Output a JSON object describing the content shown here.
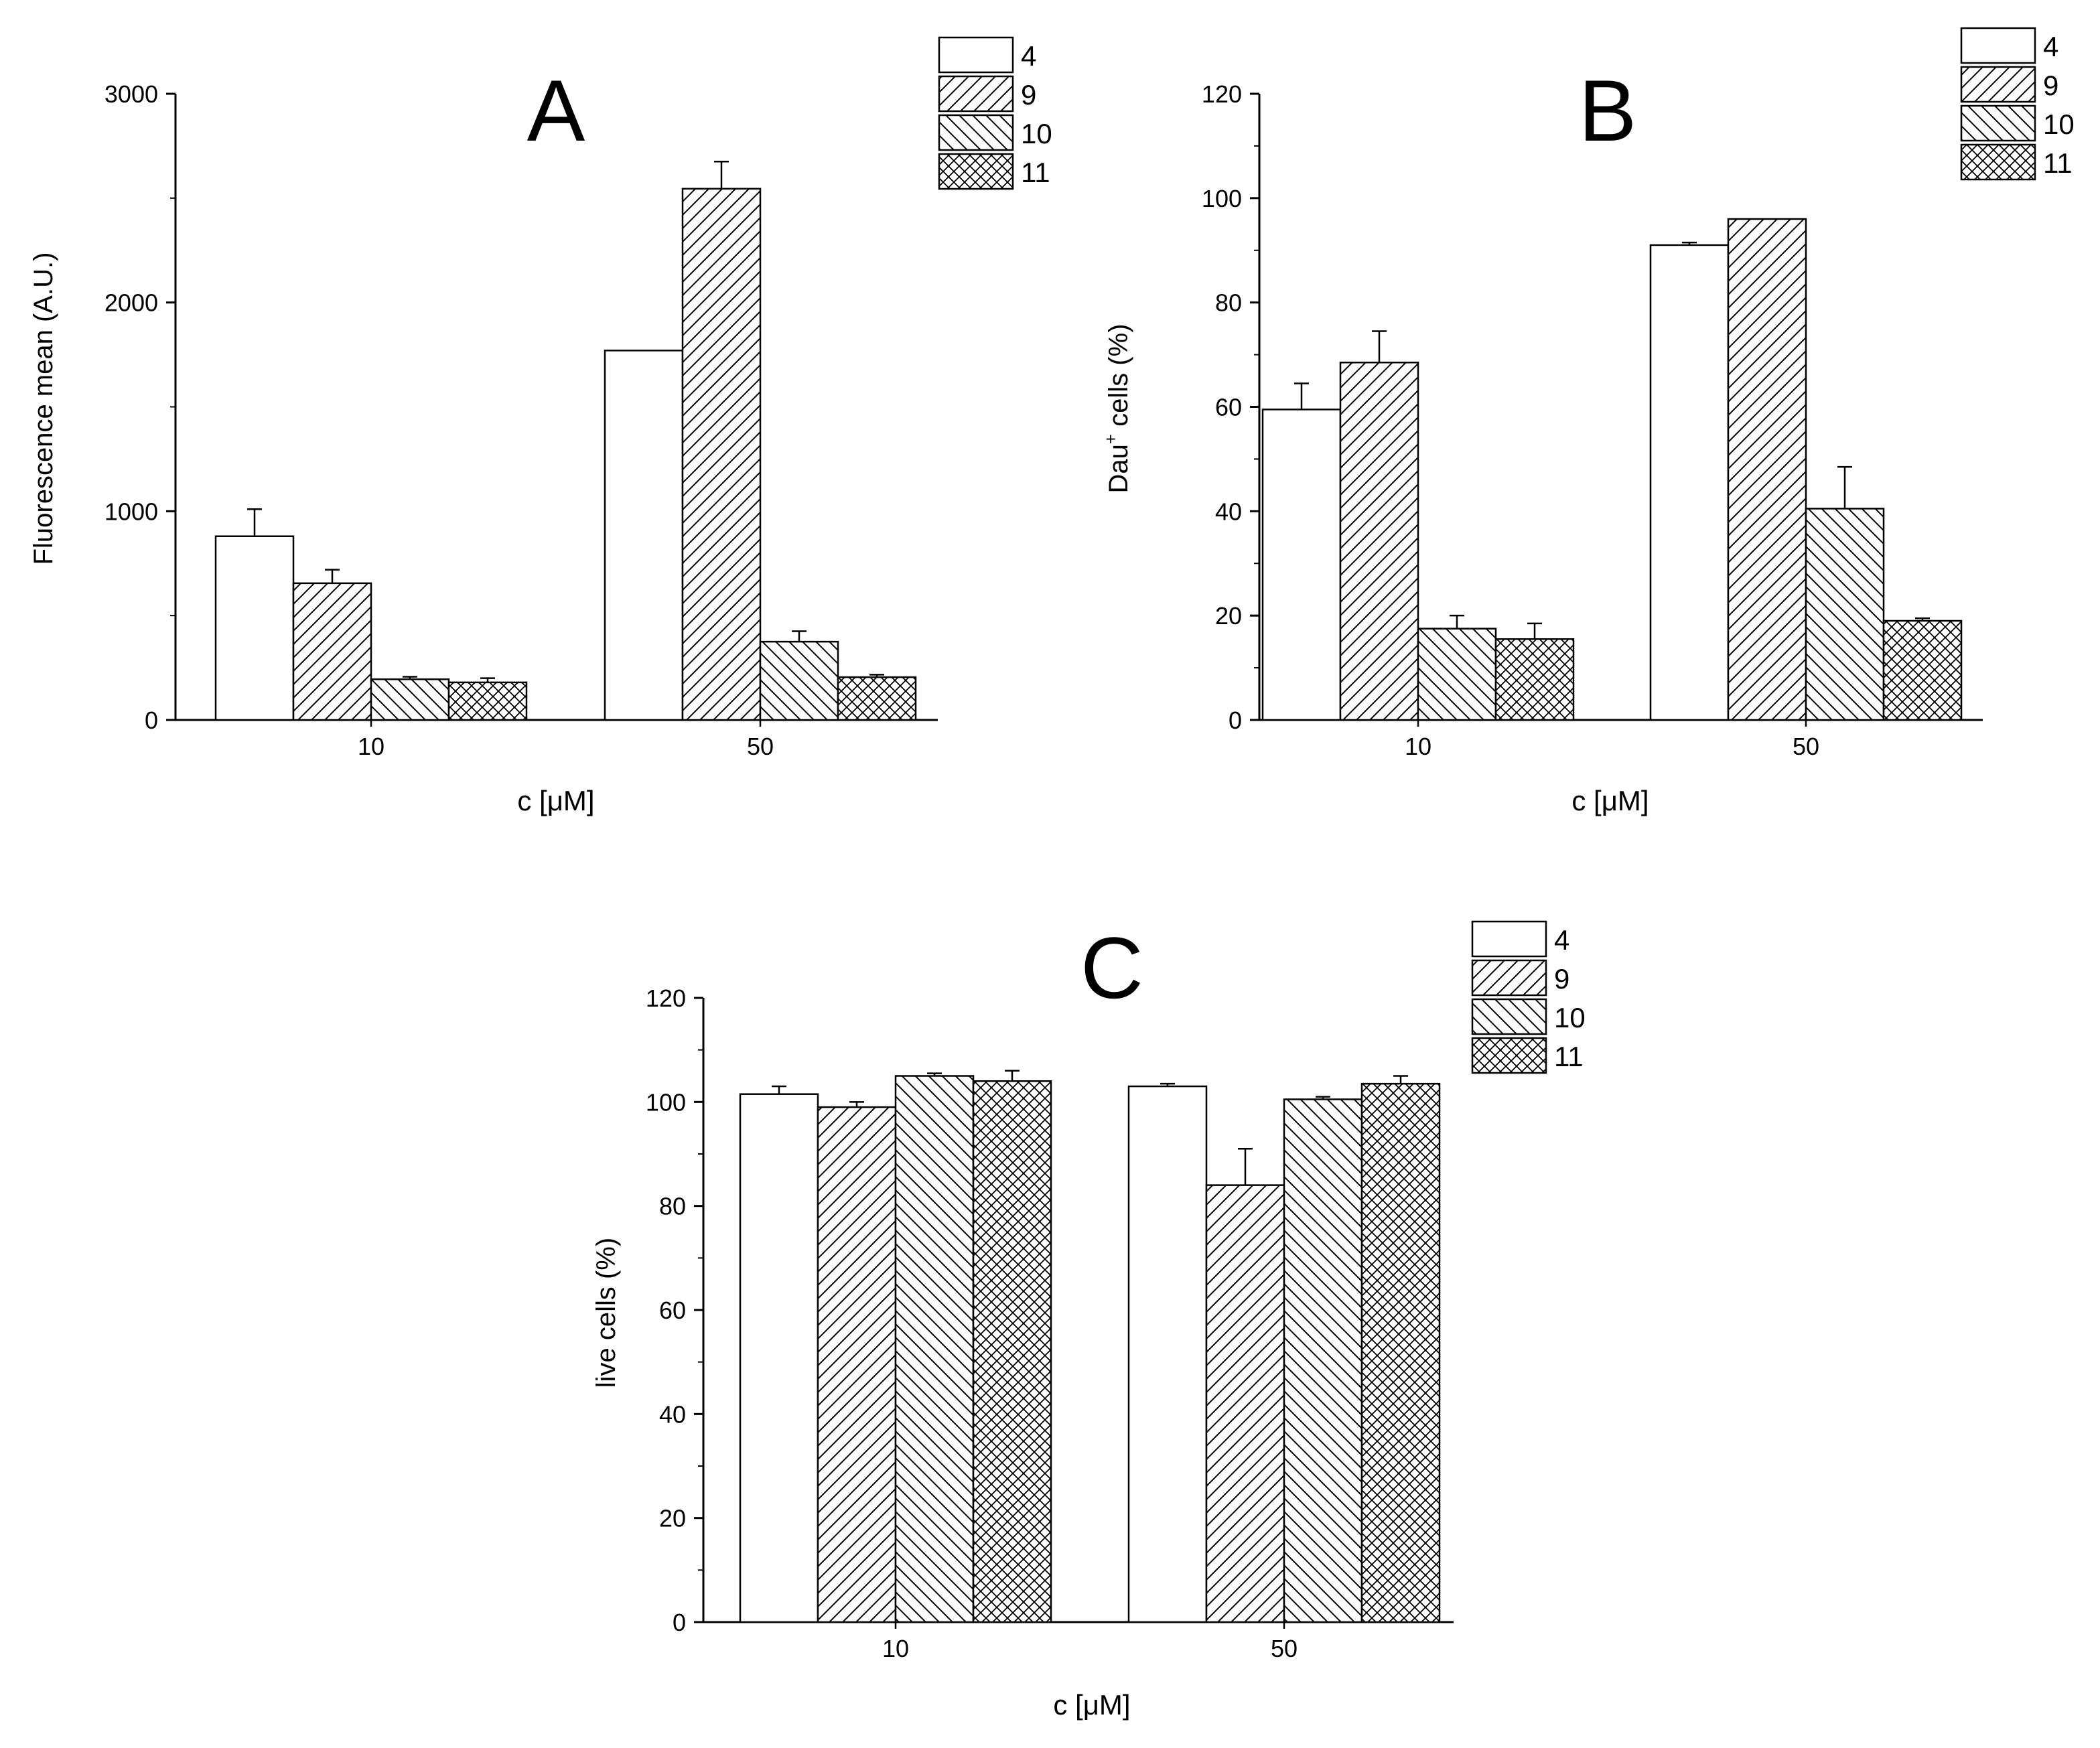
{
  "chart_data": [
    {
      "type": "bar",
      "panel_label": "A",
      "categories": [
        "10",
        "50"
      ],
      "xlabel": "c [μM]",
      "ylabel": "Fluorescence mean (A.U.)",
      "ylim": [
        0,
        3000
      ],
      "yticks": [
        0,
        1000,
        2000,
        3000
      ],
      "series": [
        {
          "name": "4",
          "pattern": "none",
          "values": [
            880,
            1770
          ],
          "errors": [
            130,
            0
          ]
        },
        {
          "name": "9",
          "pattern": "fwd",
          "values": [
            655,
            2545
          ],
          "errors": [
            65,
            130
          ]
        },
        {
          "name": "10",
          "pattern": "back",
          "values": [
            195,
            375
          ],
          "errors": [
            12,
            50
          ]
        },
        {
          "name": "11",
          "pattern": "cross",
          "values": [
            180,
            205
          ],
          "errors": [
            20,
            12
          ]
        }
      ],
      "legend": "top-right",
      "grid": false
    },
    {
      "type": "bar",
      "panel_label": "B",
      "categories": [
        "10",
        "50"
      ],
      "xlabel": "c [μM]",
      "ylabel_main": "Dau",
      "ylabel_sup": "+",
      "ylabel_rest": " cells (%)",
      "ylim": [
        0,
        120
      ],
      "yticks": [
        0,
        20,
        40,
        60,
        80,
        100,
        120
      ],
      "series": [
        {
          "name": "4",
          "pattern": "none",
          "values": [
            59.5,
            91
          ],
          "errors": [
            5,
            0.5
          ]
        },
        {
          "name": "9",
          "pattern": "fwd",
          "values": [
            68.5,
            96
          ],
          "errors": [
            6,
            0
          ]
        },
        {
          "name": "10",
          "pattern": "back",
          "values": [
            17.5,
            40.5
          ],
          "errors": [
            2.5,
            8
          ]
        },
        {
          "name": "11",
          "pattern": "cross",
          "values": [
            15.5,
            19
          ],
          "errors": [
            3,
            0.5
          ]
        }
      ],
      "legend": "top-right",
      "grid": false
    },
    {
      "type": "bar",
      "panel_label": "C",
      "categories": [
        "10",
        "50"
      ],
      "xlabel": "c [μM]",
      "ylabel": "live cells (%)",
      "ylim": [
        0,
        120
      ],
      "yticks": [
        0,
        20,
        40,
        60,
        80,
        100,
        120
      ],
      "series": [
        {
          "name": "4",
          "pattern": "none",
          "values": [
            101.5,
            103
          ],
          "errors": [
            1.5,
            0.5
          ]
        },
        {
          "name": "9",
          "pattern": "fwd",
          "values": [
            99,
            84
          ],
          "errors": [
            1,
            7
          ]
        },
        {
          "name": "10",
          "pattern": "back",
          "values": [
            105,
            100.5
          ],
          "errors": [
            0.5,
            0.5
          ]
        },
        {
          "name": "11",
          "pattern": "cross",
          "values": [
            104,
            103.5
          ],
          "errors": [
            2,
            1.5
          ]
        }
      ],
      "legend": "top-right",
      "grid": false
    }
  ]
}
